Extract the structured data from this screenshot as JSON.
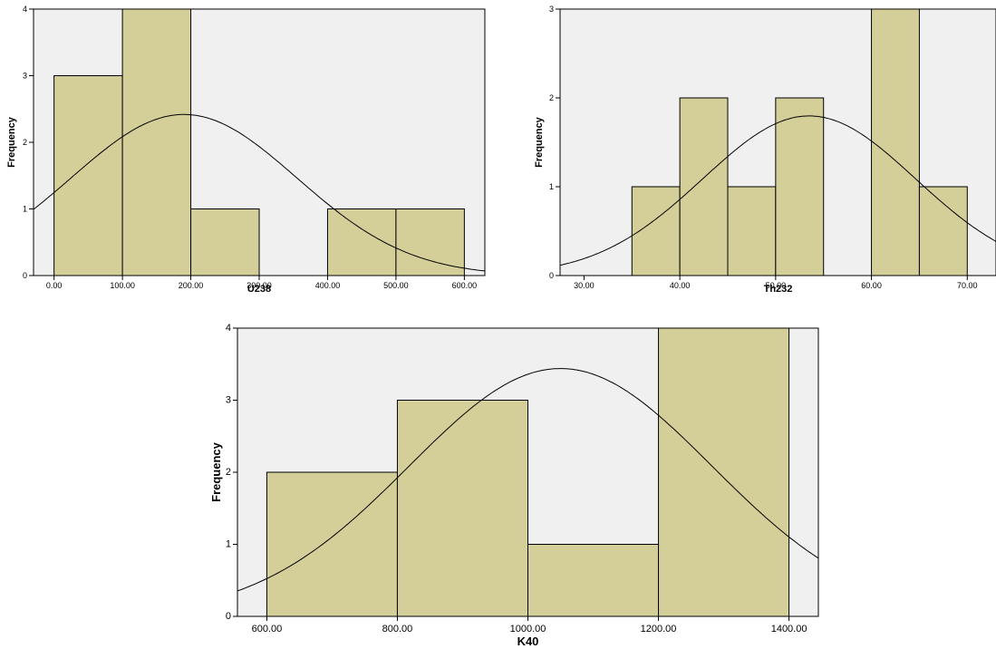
{
  "chart_data": [
    {
      "type": "bar",
      "subtype": "histogram",
      "xlabel": "U238",
      "ylabel": "Frequency",
      "bins": [
        [
          0,
          100
        ],
        [
          100,
          200
        ],
        [
          200,
          300
        ],
        [
          400,
          500
        ],
        [
          500,
          600
        ]
      ],
      "values": [
        3,
        4,
        1,
        1,
        1
      ],
      "xlim": [
        -30,
        630
      ],
      "ylim": [
        0,
        4
      ],
      "xticks": [
        0,
        100,
        200,
        300,
        400,
        500,
        600
      ],
      "xtick_labels": [
        "0.00",
        "100.00",
        "200.00",
        "300.00",
        "400.00",
        "500.00",
        "600.00"
      ],
      "yticks": [
        0,
        1,
        2,
        3,
        4
      ],
      "ytick_labels": [
        "0",
        "1",
        "2",
        "3",
        "4"
      ],
      "normal_curve": {
        "mean": 190,
        "std": 165,
        "n": 10,
        "binwidth": 100
      },
      "bar_color": "#d4cf98",
      "plot_bg": "#f0f0f0"
    },
    {
      "type": "bar",
      "subtype": "histogram",
      "xlabel": "Th232",
      "ylabel": "Frequency",
      "bins": [
        [
          35,
          40
        ],
        [
          40,
          45
        ],
        [
          45,
          50
        ],
        [
          50,
          55
        ],
        [
          60,
          65
        ],
        [
          65,
          70
        ]
      ],
      "values": [
        1,
        2,
        1,
        2,
        3,
        1
      ],
      "xlim": [
        27.5,
        73
      ],
      "ylim": [
        0,
        3
      ],
      "xticks": [
        30,
        40,
        50,
        60,
        70
      ],
      "xtick_labels": [
        "30.00",
        "40.00",
        "50.00",
        "60.00",
        "70.00"
      ],
      "yticks": [
        0,
        1,
        2,
        3
      ],
      "ytick_labels": [
        "0",
        "1",
        "2",
        "3"
      ],
      "normal_curve": {
        "mean": 53.5,
        "std": 11.1,
        "n": 10,
        "binwidth": 5
      },
      "bar_color": "#d4cf98",
      "plot_bg": "#f0f0f0"
    },
    {
      "type": "bar",
      "subtype": "histogram",
      "xlabel": "K40",
      "ylabel": "Frequency",
      "bins": [
        [
          600,
          800
        ],
        [
          800,
          1000
        ],
        [
          1000,
          1200
        ],
        [
          1200,
          1400
        ]
      ],
      "values": [
        2,
        3,
        1,
        4
      ],
      "xlim": [
        555,
        1445
      ],
      "ylim": [
        0,
        4
      ],
      "xticks": [
        600,
        800,
        1000,
        1200,
        1400
      ],
      "xtick_labels": [
        "600.00",
        "800.00",
        "1000.00",
        "1200.00",
        "1400.00"
      ],
      "yticks": [
        0,
        1,
        2,
        3,
        4
      ],
      "ytick_labels": [
        "0",
        "1",
        "2",
        "3",
        "4"
      ],
      "normal_curve": {
        "mean": 1050,
        "std": 232,
        "n": 10,
        "binwidth": 200
      },
      "bar_color": "#d4cf98",
      "plot_bg": "#f0f0f0"
    }
  ]
}
